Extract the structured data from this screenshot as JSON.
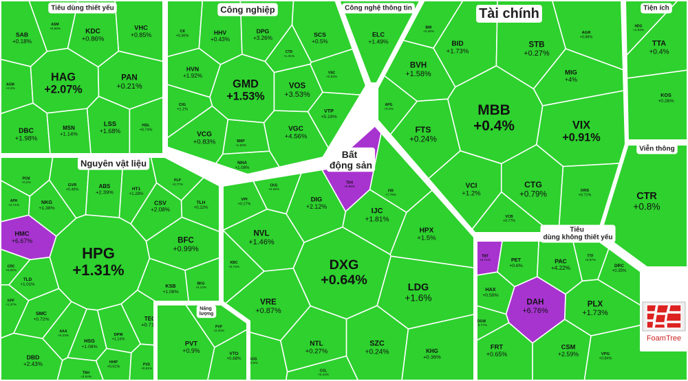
{
  "chart_data": {
    "type": "treemap",
    "color": "#2ed12e",
    "branding": "FoamTree",
    "groups": [
      {
        "name": "Tiêu dùng thiết yếu",
        "items": [
          {
            "name": "SAB",
            "value": 0.18,
            "value_label": "+0.18%"
          },
          {
            "name": "ASM",
            "value": 0.58,
            "value_label": "+0.58%"
          },
          {
            "name": "KDC",
            "value": 0.86,
            "value_label": "+0.86%"
          },
          {
            "name": "VHC",
            "value": 0.85,
            "value_label": "+0.85%"
          },
          {
            "name": "AGM",
            "value": 0.3,
            "value_label": "+0.3%"
          },
          {
            "name": "HAG",
            "value": 2.07,
            "value_label": "+2.07%"
          },
          {
            "name": "PAN",
            "value": 0.21,
            "value_label": "+0.21%"
          },
          {
            "name": "DBC",
            "value": 1.98,
            "value_label": "+1.98%"
          },
          {
            "name": "MSN",
            "value": 1.14,
            "value_label": "+1.14%"
          },
          {
            "name": "LSS",
            "value": 1.68,
            "value_label": "+1.68%"
          },
          {
            "name": "HSL",
            "value": 0.74,
            "value_label": "+0.74%"
          }
        ]
      },
      {
        "name": "Công nghiệp",
        "items": [
          {
            "name": "CII",
            "value": 0.36,
            "value_label": "+0.36%"
          },
          {
            "name": "HHV",
            "value": 0.43,
            "value_label": "+0.43%"
          },
          {
            "name": "DPG",
            "value": 3.26,
            "value_label": "+3.26%"
          },
          {
            "name": "SCS",
            "value": 0.5,
            "value_label": "+0.5%"
          },
          {
            "name": "CTD",
            "value": 1.31,
            "value_label": "+1.31%"
          },
          {
            "name": "HVN",
            "value": 1.92,
            "value_label": "+1.92%"
          },
          {
            "name": "GMD",
            "value": 1.53,
            "value_label": "+1.53%"
          },
          {
            "name": "VOS",
            "value": 3.53,
            "value_label": "+3.53%"
          },
          {
            "name": "VSC",
            "value": 0.63,
            "value_label": "+0.63%"
          },
          {
            "name": "CIG",
            "value": 1.1,
            "value_label": "+1.1%"
          },
          {
            "name": "VTP",
            "value": 5.19,
            "value_label": "+5.19%"
          },
          {
            "name": "VCG",
            "value": 0.83,
            "value_label": "+0.83%"
          },
          {
            "name": "BMP",
            "value": 1.53,
            "value_label": "+1.53%"
          },
          {
            "name": "VGC",
            "value": 4.56,
            "value_label": "+4.56%"
          },
          {
            "name": "NHA",
            "value": 1.08,
            "value_label": "+1.08%"
          }
        ]
      },
      {
        "name": "Công nghệ thông tin",
        "items": [
          {
            "name": "ELC",
            "value": 1.49,
            "value_label": "+1.49%"
          }
        ]
      },
      {
        "name": "Tài chính",
        "items": [
          {
            "name": "BMI",
            "value": 0.46,
            "value_label": "+0.46%"
          },
          {
            "name": "BID",
            "value": 1.73,
            "value_label": "+1.73%"
          },
          {
            "name": "STB",
            "value": 0.27,
            "value_label": "+0.27%"
          },
          {
            "name": "AGR",
            "value": 0.88,
            "value_label": "+0.88%"
          },
          {
            "name": "BVH",
            "value": 1.58,
            "value_label": "+1.58%"
          },
          {
            "name": "MIG",
            "value": 4,
            "value_label": "+4%"
          },
          {
            "name": "APG",
            "value": 0.3,
            "value_label": "+0.3%"
          },
          {
            "name": "MBB",
            "value": 0.4,
            "value_label": "+0.4%"
          },
          {
            "name": "VIX",
            "value": 0.91,
            "value_label": "+0.91%"
          },
          {
            "name": "FTS",
            "value": 0.24,
            "value_label": "+0.24%"
          },
          {
            "name": "VCI",
            "value": 1.2,
            "value_label": "+1.2%"
          },
          {
            "name": "CTG",
            "value": 0.79,
            "value_label": "+0.79%"
          },
          {
            "name": "ORS",
            "value": 0.71,
            "value_label": "+0.71%"
          },
          {
            "name": "VCB",
            "value": 0.77,
            "value_label": "+0.77%"
          }
        ]
      },
      {
        "name": "Tiện ích",
        "items": [
          {
            "name": "HDG",
            "value": 1.93,
            "value_label": "+1.93%"
          },
          {
            "name": "TTA",
            "value": 0.4,
            "value_label": "+0.4%"
          },
          {
            "name": "KOS",
            "value": 0.26,
            "value_label": "+0.26%"
          }
        ]
      },
      {
        "name": "Viễn thông",
        "items": [
          {
            "name": "CTR",
            "value": 0.8,
            "value_label": "+0.8%"
          }
        ]
      },
      {
        "name": "Nguyên vật liệu",
        "items": [
          {
            "name": "PCM",
            "value": 0.2,
            "value_label": "+0.2%"
          },
          {
            "name": "GVR",
            "value": 0.49,
            "value_label": "+0.49%"
          },
          {
            "name": "ABS",
            "value": 2.39,
            "value_label": "+2.39%"
          },
          {
            "name": "HT1",
            "value": 1.28,
            "value_label": "+1.28%"
          },
          {
            "name": "PLP",
            "value": 0.77,
            "value_label": "+0.77%"
          },
          {
            "name": "APH",
            "value": 2.71,
            "value_label": "+2.71%"
          },
          {
            "name": "NKG",
            "value": 1.38,
            "value_label": "+1.38%"
          },
          {
            "name": "CSV",
            "value": 2.08,
            "value_label": "+2.08%"
          },
          {
            "name": "TLH",
            "value": 0.22,
            "value_label": "+0.22%"
          },
          {
            "name": "HMC",
            "value": 6.67,
            "value_label": "+6.67%",
            "color": "#a834d0"
          },
          {
            "name": "HPG",
            "value": 1.31,
            "value_label": "+1.31%"
          },
          {
            "name": "BFC",
            "value": 0.99,
            "value_label": "+0.99%"
          },
          {
            "name": "CRC",
            "value": 0.55,
            "value_label": "+0.55%"
          },
          {
            "name": "TLD",
            "value": 1.01,
            "value_label": "+1.01%"
          },
          {
            "name": "KSB",
            "value": 1.08,
            "value_label": "+1.08%"
          },
          {
            "name": "BKG",
            "value": 0.14,
            "value_label": "+0.14%"
          },
          {
            "name": "KPF",
            "value": 1.37,
            "value_label": "+1.37%"
          },
          {
            "name": "SMC",
            "value": 0.72,
            "value_label": "+0.72%"
          },
          {
            "name": "TEG",
            "value": 0.71,
            "value_label": "+0.71%"
          },
          {
            "name": "AAA",
            "value": 0.23,
            "value_label": "+0.23%"
          },
          {
            "name": "HSG",
            "value": 1.08,
            "value_label": "+1.08%"
          },
          {
            "name": "DPM",
            "value": 1.14,
            "value_label": "+1.14%"
          },
          {
            "name": "DBD",
            "value": 2.43,
            "value_label": "+2.43%"
          },
          {
            "name": "TNH",
            "value": 3.54,
            "value_label": "+3.54%"
          },
          {
            "name": "HHP",
            "value": 0.61,
            "value_label": "+0.61%"
          },
          {
            "name": "PVD",
            "value": 0.61,
            "value_label": "+0.61%"
          }
        ]
      },
      {
        "name": "Năng lượng",
        "items": [
          {
            "name": "PVP",
            "value": 2.34,
            "value_label": "+2.34%"
          },
          {
            "name": "PVT",
            "value": 0.9,
            "value_label": "+0.9%"
          },
          {
            "name": "VTO",
            "value": 0.68,
            "value_label": "+0.68%"
          }
        ]
      },
      {
        "name": "Bất động sản",
        "items": [
          {
            "name": "VPI",
            "value": 0.17,
            "value_label": "+0.17%"
          },
          {
            "name": "CKG",
            "value": 0.26,
            "value_label": "+0.26%"
          },
          {
            "name": "DIG",
            "value": 2.12,
            "value_label": "+2.12%"
          },
          {
            "name": "TDH",
            "value": 6.98,
            "value_label": "+6.98%",
            "color": "#a834d0"
          },
          {
            "name": "FIR",
            "value": 7.79,
            "value_label": "+7.79%"
          },
          {
            "name": "IJC",
            "value": 1.81,
            "value_label": "+1.81%"
          },
          {
            "name": "NVL",
            "value": 1.46,
            "value_label": "+1.46%"
          },
          {
            "name": "HPX",
            "value": 1.5,
            "value_label": "+1.5%"
          },
          {
            "name": "KBC",
            "value": 0.74,
            "value_label": "+0.74%"
          },
          {
            "name": "DXG",
            "value": 0.64,
            "value_label": "+0.64%"
          },
          {
            "name": "VRE",
            "value": 0.87,
            "value_label": "+0.87%"
          },
          {
            "name": "LDG",
            "value": 1.6,
            "value_label": "+1.6%"
          },
          {
            "name": "AGG",
            "value": 0.5,
            "value_label": "+0.5%"
          },
          {
            "name": "NTL",
            "value": 0.27,
            "value_label": "+0.27%"
          },
          {
            "name": "CCL",
            "value": 0.44,
            "value_label": "+0.44%"
          },
          {
            "name": "SZC",
            "value": 0.24,
            "value_label": "+0.24%"
          },
          {
            "name": "KHG",
            "value": 0.36,
            "value_label": "+0.36%"
          }
        ]
      },
      {
        "name": "Tiêu dùng không thiết yếu",
        "items": [
          {
            "name": "TMT",
            "value": 6.71,
            "value_label": "+6.71%",
            "color": "#a834d0"
          },
          {
            "name": "PET",
            "value": 0.6,
            "value_label": "+0.6%"
          },
          {
            "name": "PAC",
            "value": 4.22,
            "value_label": "+4.22%"
          },
          {
            "name": "TTF",
            "value": 0.97,
            "value_label": "+0.97%"
          },
          {
            "name": "DRC",
            "value": 0.35,
            "value_label": "+0.35%"
          },
          {
            "name": "HAX",
            "value": 0.59,
            "value_label": "+0.59%"
          },
          {
            "name": "DAH",
            "value": 6.76,
            "value_label": "+6.76%",
            "color": "#a834d0"
          },
          {
            "name": "PLX",
            "value": 1.73,
            "value_label": "+1.73%"
          },
          {
            "name": "DGW",
            "value": 0.77,
            "value_label": "+0.77%"
          },
          {
            "name": "FRT",
            "value": 0.65,
            "value_label": "+0.65%"
          },
          {
            "name": "CSM",
            "value": 2.59,
            "value_label": "+2.59%"
          },
          {
            "name": "VPG",
            "value": 0.84,
            "value_label": "+0.84%"
          }
        ]
      }
    ]
  }
}
